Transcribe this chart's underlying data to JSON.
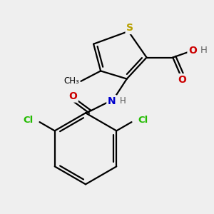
{
  "background_color": "#efefef",
  "bond_color": "#000000",
  "bond_width": 1.6,
  "atom_labels": {
    "S": {
      "color": "#b8a000",
      "fontsize": 10,
      "fontweight": "bold"
    },
    "O": {
      "color": "#cc0000",
      "fontsize": 10,
      "fontweight": "bold"
    },
    "N": {
      "color": "#0000cc",
      "fontsize": 10,
      "fontweight": "bold"
    },
    "Cl": {
      "color": "#22bb00",
      "fontsize": 9.5,
      "fontweight": "bold"
    },
    "H_gray": {
      "color": "#666666",
      "fontsize": 9.5,
      "fontweight": "normal"
    }
  },
  "figsize": [
    3.0,
    3.0
  ],
  "dpi": 100,
  "xlim": [
    0,
    300
  ],
  "ylim": [
    0,
    300
  ]
}
